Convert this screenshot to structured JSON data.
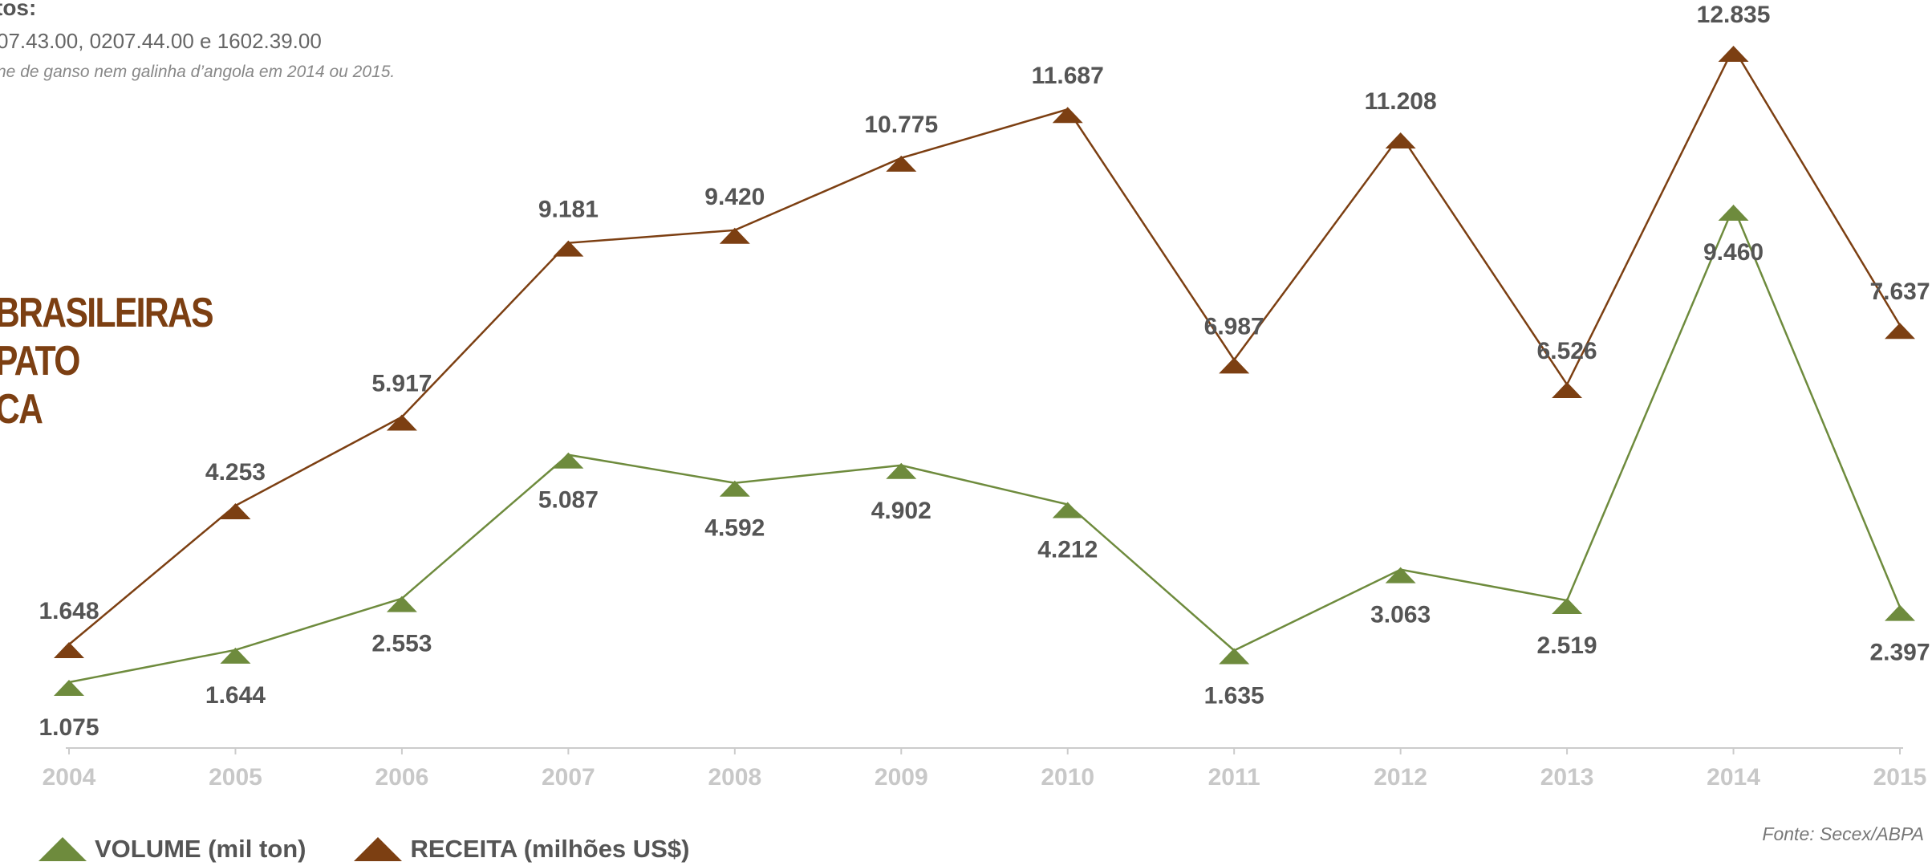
{
  "header": {
    "title_fragment": "tos:",
    "codes": "07.43.00, 0207.44.00 e 1602.39.00",
    "note": "ne de ganso nem galinha d’angola em 2014 ou 2015."
  },
  "big_title": {
    "line1": "BRASILEIRAS",
    "line2": "PATO",
    "line3": "CA"
  },
  "source": "Fonte: Secex/ABPA",
  "legend": {
    "volume_label": "VOLUME (mil ton)",
    "receita_label": "RECEITA (milhões US$)"
  },
  "colors": {
    "volume": "#6e8b3d",
    "receita": "#7c3f12",
    "axis": "#cccccc",
    "tick_label": "#c8c8c8",
    "value_label": "#555555"
  },
  "chart_data": {
    "type": "line",
    "x": [
      2004,
      2005,
      2006,
      2007,
      2008,
      2009,
      2010,
      2011,
      2012,
      2013,
      2014,
      2015
    ],
    "series": [
      {
        "name": "VOLUME (mil ton)",
        "values": [
          1.075,
          1.644,
          2.553,
          5.087,
          4.592,
          4.902,
          4.212,
          1.635,
          3.063,
          2.519,
          9.46,
          2.397
        ],
        "labels": [
          "1.075",
          "1.644",
          "2.553",
          "5.087",
          "4.592",
          "4.902",
          "4.212",
          "1.635",
          "3.063",
          "2.519",
          "9.460",
          "2.397"
        ],
        "marker": "triangle",
        "color": "#6e8b3d"
      },
      {
        "name": "RECEITA (milhões US$)",
        "values": [
          1.648,
          4.253,
          5.917,
          9.181,
          9.42,
          10.775,
          11.687,
          6.987,
          11.208,
          6.526,
          12.835,
          7.637
        ],
        "labels": [
          "1.648",
          "4.253",
          "5.917",
          "9.181",
          "9.420",
          "10.775",
          "11.687",
          "6.987",
          "11.208",
          "6.526",
          "12.835",
          "7.637"
        ],
        "marker": "triangle",
        "color": "#7c3f12"
      }
    ],
    "ylim": [
      0,
      13.5
    ],
    "grid": false,
    "legend": "bottom-left"
  }
}
